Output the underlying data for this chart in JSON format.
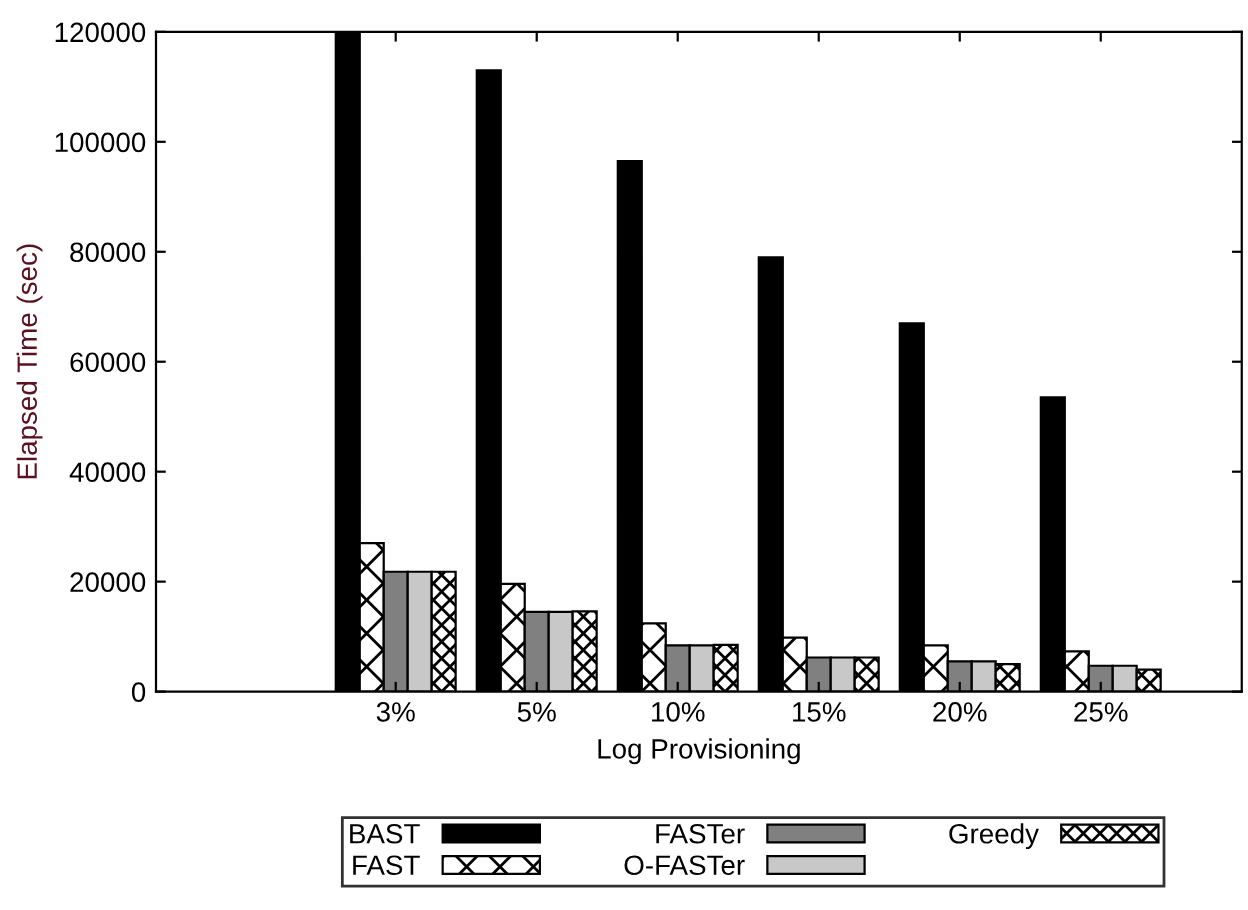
{
  "chart_data": {
    "type": "bar",
    "xlabel": "Log Provisioning",
    "ylabel": "Elapsed Time (sec)",
    "categories": [
      "3%",
      "5%",
      "10%",
      "15%",
      "20%",
      "25%"
    ],
    "series": [
      {
        "name": "BAST",
        "color": "#000000",
        "values": [
          120000,
          113000,
          96500,
          79000,
          67000,
          53500
        ]
      },
      {
        "name": "FAST",
        "color": "#000000",
        "values": [
          27000,
          19600,
          12400,
          9800,
          8400,
          7300
        ]
      },
      {
        "name": "FASTer",
        "color": "#808080",
        "values": [
          21800,
          14500,
          8400,
          6200,
          5500,
          4700
        ]
      },
      {
        "name": "O-FASTer",
        "color": "#c8c8c8",
        "values": [
          21800,
          14500,
          8400,
          6200,
          5500,
          4700
        ]
      },
      {
        "name": "Greedy",
        "color": "#000000",
        "values": [
          21800,
          14600,
          8500,
          6200,
          5000,
          4000
        ]
      }
    ],
    "ylim": [
      0,
      120000
    ],
    "yticks": [
      0,
      20000,
      40000,
      60000,
      80000,
      100000,
      120000
    ],
    "grid": false,
    "legend": "bottom"
  }
}
